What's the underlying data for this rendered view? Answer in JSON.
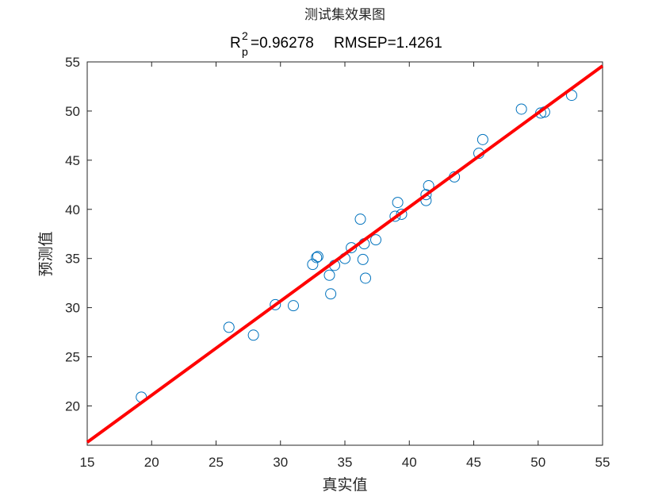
{
  "chart_data": {
    "type": "scatter",
    "title": "测试集效果图",
    "metrics": {
      "r_symbol": "R",
      "r_superscript": "2",
      "r_subscript": "p",
      "r2_value": "=0.96278",
      "rmsep_text": "RMSEP=1.4261"
    },
    "xlabel": "真实值",
    "ylabel": "预测值",
    "xlim": [
      15,
      55
    ],
    "ylim": [
      16,
      55
    ],
    "xticks": [
      15,
      20,
      25,
      30,
      35,
      40,
      45,
      50,
      55
    ],
    "yticks": [
      20,
      25,
      30,
      35,
      40,
      45,
      50,
      55
    ],
    "grid": false,
    "marker": "open-circle",
    "marker_color": "#0072BD",
    "fit_line_color": "#FF0000",
    "fit_line": {
      "x": [
        15,
        55
      ],
      "y": [
        16.3,
        54.6
      ]
    },
    "points": [
      {
        "x": 19.2,
        "y": 20.9
      },
      {
        "x": 26.0,
        "y": 28.0
      },
      {
        "x": 27.9,
        "y": 27.2
      },
      {
        "x": 29.6,
        "y": 30.3
      },
      {
        "x": 31.0,
        "y": 30.2
      },
      {
        "x": 32.5,
        "y": 34.4
      },
      {
        "x": 32.8,
        "y": 35.1
      },
      {
        "x": 32.9,
        "y": 35.2
      },
      {
        "x": 33.8,
        "y": 33.3
      },
      {
        "x": 33.9,
        "y": 31.4
      },
      {
        "x": 34.2,
        "y": 34.3
      },
      {
        "x": 35.0,
        "y": 35.0
      },
      {
        "x": 35.5,
        "y": 36.1
      },
      {
        "x": 36.2,
        "y": 39.0
      },
      {
        "x": 36.4,
        "y": 34.9
      },
      {
        "x": 36.5,
        "y": 36.5
      },
      {
        "x": 36.6,
        "y": 33.0
      },
      {
        "x": 37.4,
        "y": 36.9
      },
      {
        "x": 38.9,
        "y": 39.3
      },
      {
        "x": 39.1,
        "y": 40.7
      },
      {
        "x": 39.4,
        "y": 39.5
      },
      {
        "x": 41.3,
        "y": 41.5
      },
      {
        "x": 41.3,
        "y": 40.9
      },
      {
        "x": 41.5,
        "y": 42.4
      },
      {
        "x": 43.5,
        "y": 43.3
      },
      {
        "x": 45.4,
        "y": 45.7
      },
      {
        "x": 45.7,
        "y": 47.1
      },
      {
        "x": 48.7,
        "y": 50.2
      },
      {
        "x": 50.2,
        "y": 49.8
      },
      {
        "x": 50.5,
        "y": 49.9
      },
      {
        "x": 52.6,
        "y": 51.6
      }
    ]
  }
}
